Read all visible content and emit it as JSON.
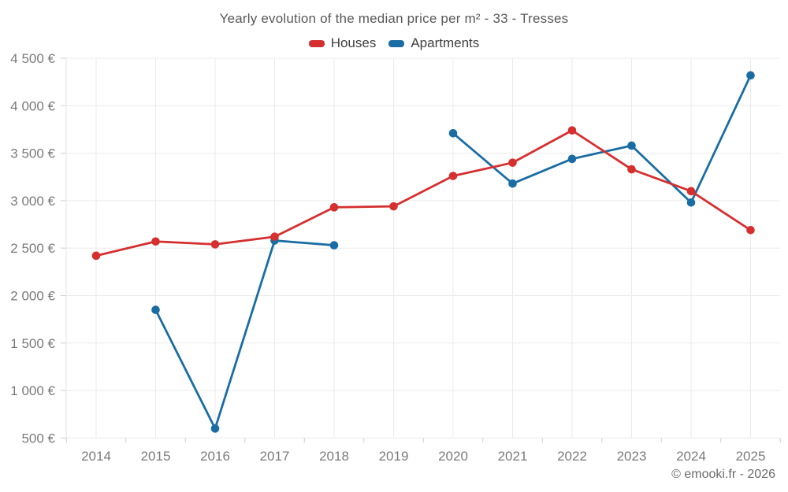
{
  "header": {
    "title": "Yearly evolution of the median price per m² - 33 - Tresses"
  },
  "footer": {
    "credit": "© emooki.fr - 2026"
  },
  "chart_data": {
    "type": "line",
    "title": "Yearly evolution of the median price per m² - 33 - Tresses",
    "categories": [
      "2014",
      "2015",
      "2016",
      "2017",
      "2018",
      "2019",
      "2020",
      "2021",
      "2022",
      "2023",
      "2024",
      "2025"
    ],
    "series": [
      {
        "name": "Houses",
        "color": "#d62f2f",
        "values": [
          2420,
          2570,
          2540,
          2620,
          2930,
          2940,
          3260,
          3400,
          3740,
          3330,
          3100,
          2690
        ]
      },
      {
        "name": "Apartments",
        "color": "#1a6da3",
        "values": [
          null,
          1850,
          600,
          2580,
          2530,
          null,
          3710,
          3180,
          3440,
          3580,
          2980,
          4320
        ]
      }
    ],
    "y_axis": {
      "min": 500,
      "max": 4500,
      "step": 500,
      "unit": "€",
      "tick_labels": [
        "500 €",
        "1 000 €",
        "1 500 €",
        "2 000 €",
        "2 500 €",
        "3 000 €",
        "3 500 €",
        "4 000 €",
        "4 500 €"
      ]
    },
    "x_axis_label": "",
    "y_axis_label": "",
    "grid": true,
    "legend_position": "top",
    "missing_data_note": "Apartments has no data for 2014 and 2019"
  },
  "colors": {
    "grid": "#ebebeb",
    "axis_tick": "#cfcfcf",
    "axis_label": "#7a7a7a",
    "title_text": "#595959",
    "legend_text": "#3f3f3f"
  }
}
